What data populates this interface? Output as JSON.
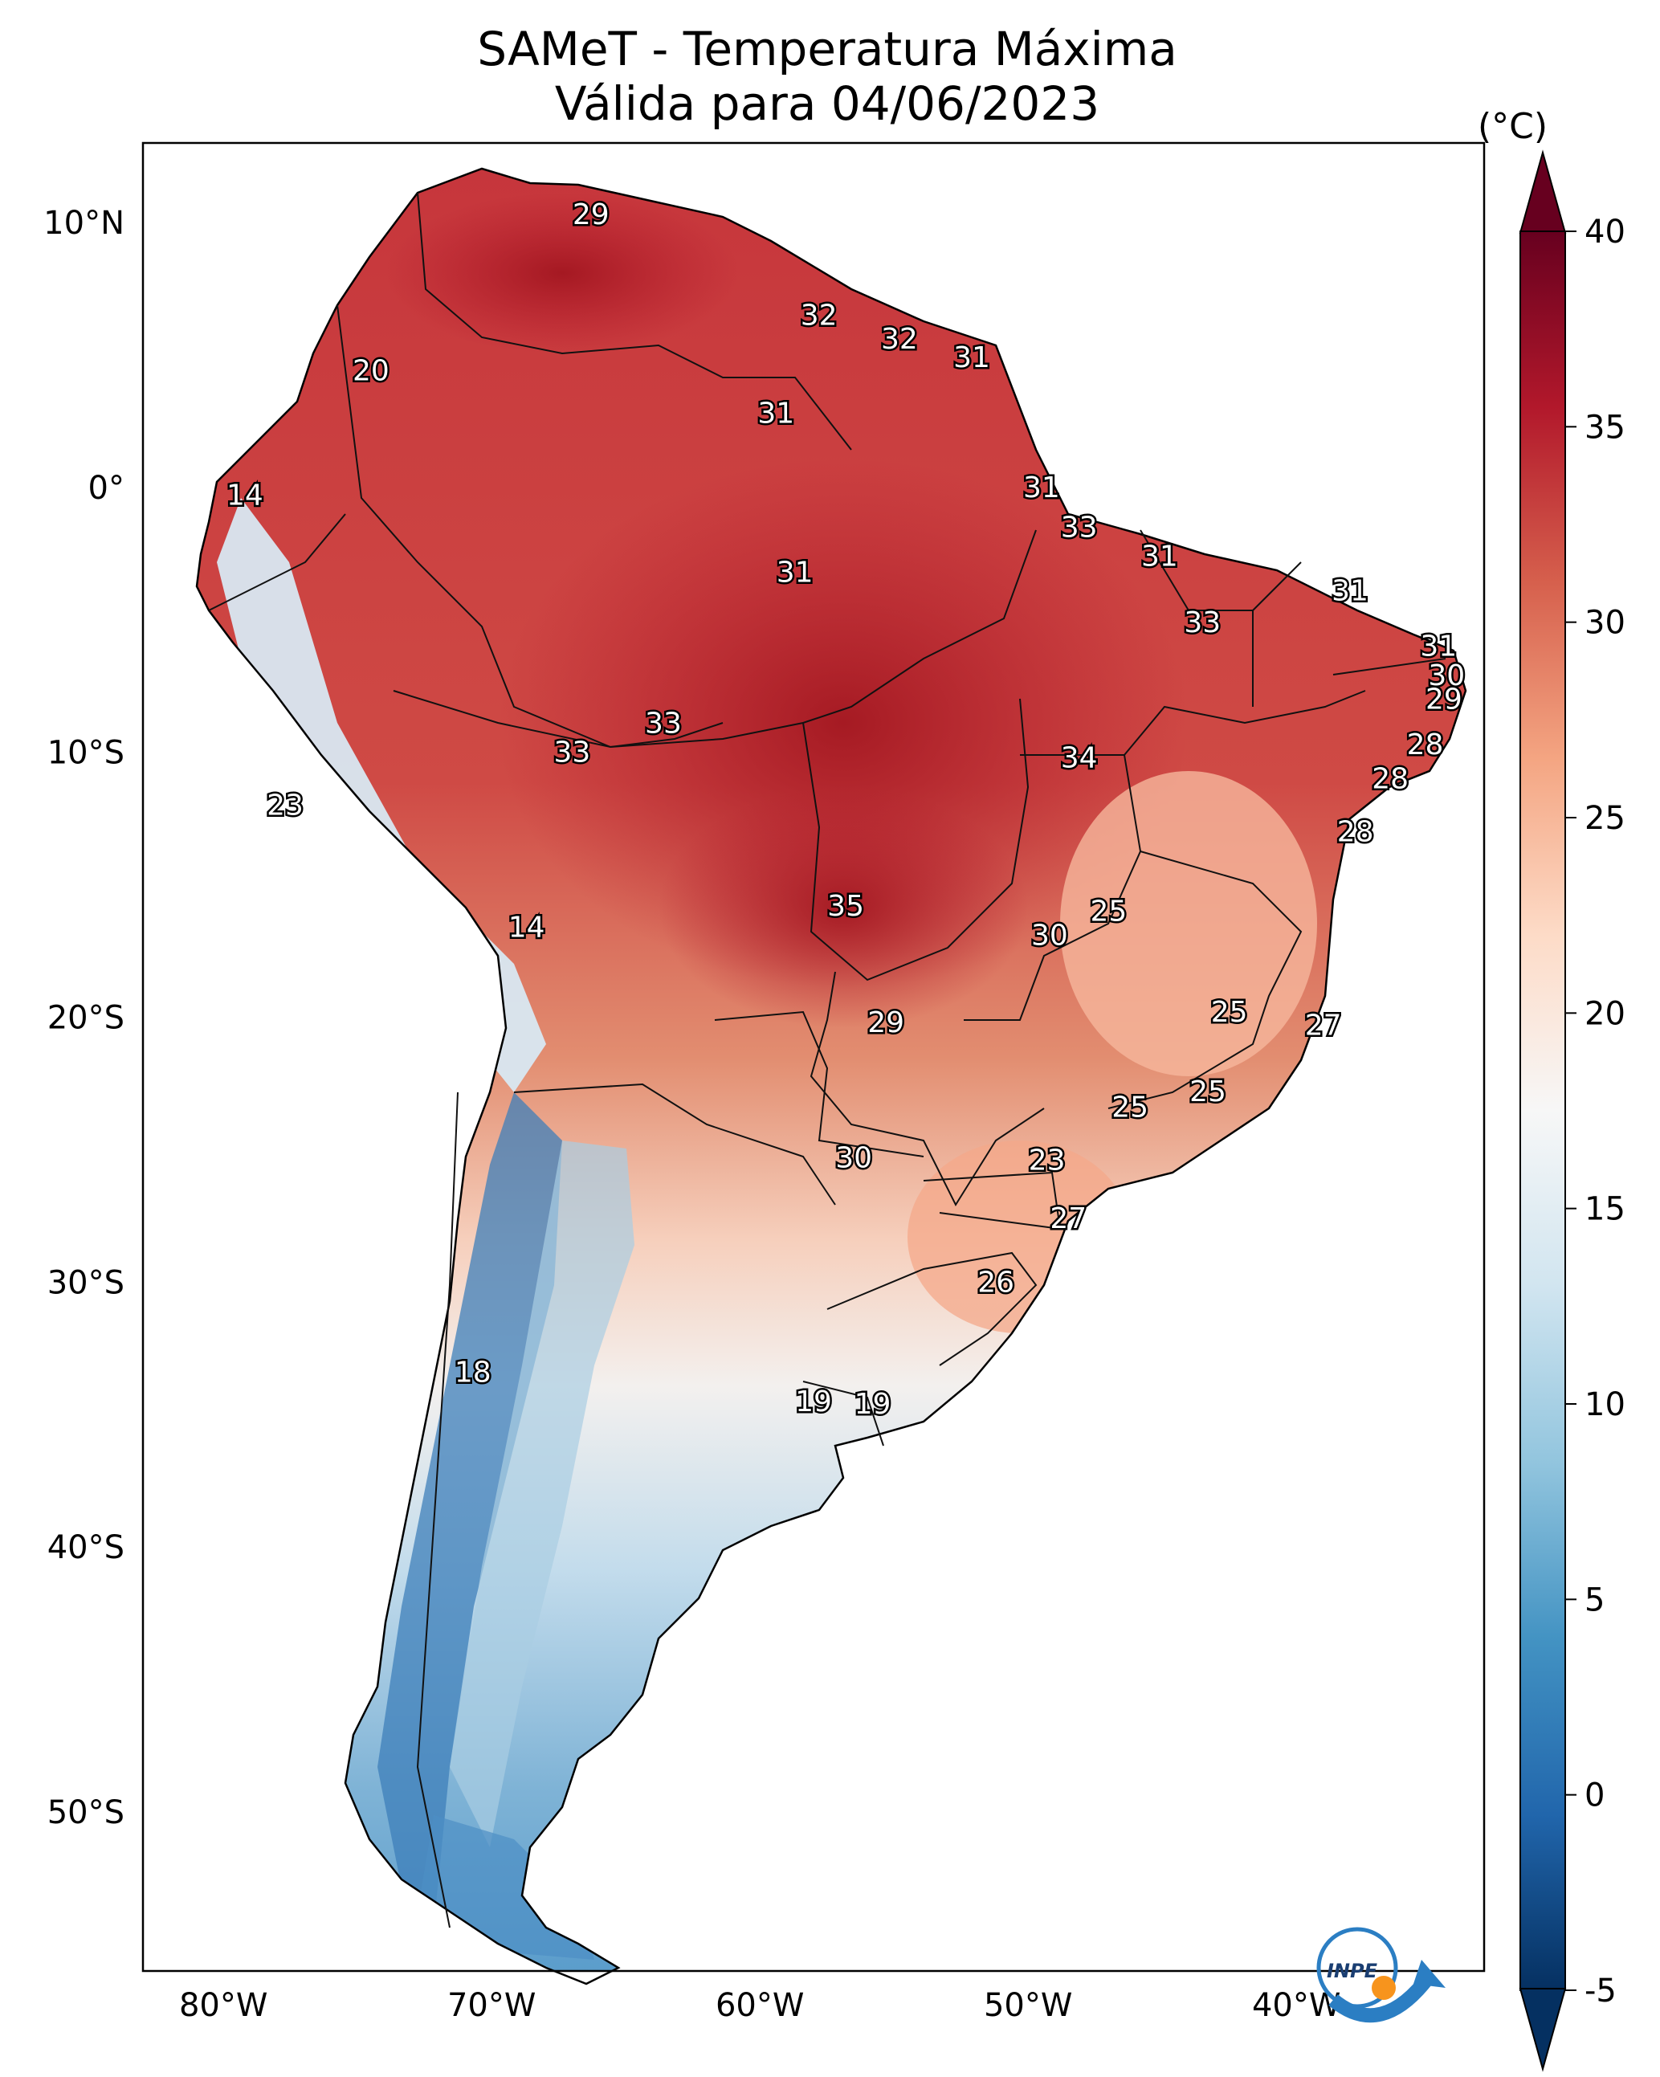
{
  "title": {
    "line1": "SAMeT - Temperatura Máxima",
    "line2": "Válida para 04/06/2023"
  },
  "axes": {
    "lon_ticks": [
      "80°W",
      "70°W",
      "60°W",
      "50°W",
      "40°W"
    ],
    "lat_ticks": [
      "10°N",
      "0°",
      "10°S",
      "20°S",
      "30°S",
      "40°S",
      "50°S"
    ]
  },
  "colorbar": {
    "unit": "(°C)",
    "ticks": [
      "40",
      "35",
      "30",
      "25",
      "20",
      "15",
      "10",
      "5",
      "0",
      "-5"
    ],
    "min": -5,
    "max": 40,
    "colors": [
      "#053061",
      "#2166ac",
      "#4393c3",
      "#92c5de",
      "#d1e5f0",
      "#f7f7f7",
      "#fddbc7",
      "#f4a582",
      "#d6604d",
      "#b2182b",
      "#67001f"
    ]
  },
  "chart_data": {
    "type": "heatmap",
    "title": "SAMeT - Temperatura Máxima",
    "subtitle": "Válida para 04/06/2023",
    "variable": "Temperatura Máxima",
    "unit": "°C",
    "colorbar_range": [
      -5,
      40
    ],
    "lon_range": [
      -83,
      -33
    ],
    "lat_range": [
      -56,
      13
    ],
    "station_labels": [
      {
        "lon": -66.3,
        "lat": 10.3,
        "value": "29"
      },
      {
        "lon": -57.8,
        "lat": 6.5,
        "value": "32"
      },
      {
        "lon": -54.8,
        "lat": 5.6,
        "value": "32"
      },
      {
        "lon": -52.1,
        "lat": 4.9,
        "value": "31"
      },
      {
        "lon": -74.5,
        "lat": 4.4,
        "value": "20"
      },
      {
        "lon": -59.4,
        "lat": 2.8,
        "value": "31"
      },
      {
        "lon": -49.5,
        "lat": 0.0,
        "value": "31"
      },
      {
        "lon": -79.2,
        "lat": -0.3,
        "value": "14"
      },
      {
        "lon": -48.1,
        "lat": -1.5,
        "value": "33"
      },
      {
        "lon": -58.7,
        "lat": -3.2,
        "value": "31"
      },
      {
        "lon": -45.1,
        "lat": -2.6,
        "value": "31"
      },
      {
        "lon": -38.0,
        "lat": -3.9,
        "value": "31"
      },
      {
        "lon": -43.5,
        "lat": -5.1,
        "value": "33"
      },
      {
        "lon": -34.7,
        "lat": -6.0,
        "value": "31"
      },
      {
        "lon": -34.4,
        "lat": -7.1,
        "value": "30"
      },
      {
        "lon": -34.5,
        "lat": -8.0,
        "value": "29"
      },
      {
        "lon": -63.6,
        "lat": -8.9,
        "value": "33"
      },
      {
        "lon": -67.0,
        "lat": -10.0,
        "value": "33"
      },
      {
        "lon": -48.1,
        "lat": -10.2,
        "value": "34"
      },
      {
        "lon": -35.2,
        "lat": -9.7,
        "value": "28"
      },
      {
        "lon": -36.5,
        "lat": -11.0,
        "value": "28"
      },
      {
        "lon": -77.7,
        "lat": -12.0,
        "value": "23"
      },
      {
        "lon": -37.8,
        "lat": -13.0,
        "value": "28"
      },
      {
        "lon": -56.8,
        "lat": -15.8,
        "value": "35"
      },
      {
        "lon": -47.0,
        "lat": -16.0,
        "value": "25"
      },
      {
        "lon": -49.2,
        "lat": -16.9,
        "value": "30"
      },
      {
        "lon": -68.7,
        "lat": -16.6,
        "value": "14"
      },
      {
        "lon": -55.3,
        "lat": -20.2,
        "value": "29"
      },
      {
        "lon": -42.5,
        "lat": -19.8,
        "value": "25"
      },
      {
        "lon": -39.0,
        "lat": -20.3,
        "value": "27"
      },
      {
        "lon": -43.3,
        "lat": -22.8,
        "value": "25"
      },
      {
        "lon": -46.2,
        "lat": -23.4,
        "value": "25"
      },
      {
        "lon": -56.5,
        "lat": -25.3,
        "value": "30"
      },
      {
        "lon": -49.3,
        "lat": -25.4,
        "value": "23"
      },
      {
        "lon": -48.5,
        "lat": -27.6,
        "value": "27"
      },
      {
        "lon": -51.2,
        "lat": -30.0,
        "value": "26"
      },
      {
        "lon": -70.7,
        "lat": -33.4,
        "value": "18"
      },
      {
        "lon": -58.0,
        "lat": -34.5,
        "value": "19"
      },
      {
        "lon": -55.8,
        "lat": -34.6,
        "value": "19"
      }
    ]
  }
}
